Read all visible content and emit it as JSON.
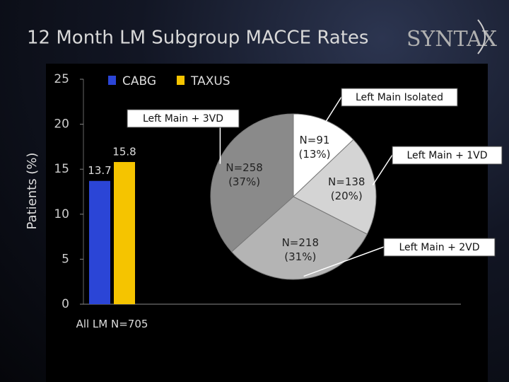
{
  "chart_data": [
    {
      "type": "bar",
      "title": "12 Month LM Subgroup MACCE Rates",
      "logo": "SYNTAX",
      "y_label": "Patients (%)",
      "categories": [
        "All LM N=705"
      ],
      "series": [
        {
          "name": "CABG",
          "color": "#2b45d6",
          "values": [
            13.7
          ]
        },
        {
          "name": "TAXUS",
          "color": "#f5c400",
          "values": [
            15.8
          ]
        }
      ],
      "ylim": [
        0,
        25
      ],
      "yticks": [
        0,
        5,
        10,
        15,
        20,
        25
      ],
      "grid": false
    },
    {
      "type": "pie",
      "categories": [
        "Left Main Isolated",
        "Left Main + 1VD",
        "Left Main + 2VD",
        "Left Main + 3VD"
      ],
      "values": [
        91,
        138,
        218,
        258
      ],
      "value_labels": [
        "N=91 (13%)",
        "N=138 (20%)",
        "N=218 (31%)",
        "N=258 (37%)"
      ],
      "colors": [
        "#ffffff",
        "#d4d4d4",
        "#b4b4b4",
        "#8a8a8a"
      ]
    }
  ]
}
